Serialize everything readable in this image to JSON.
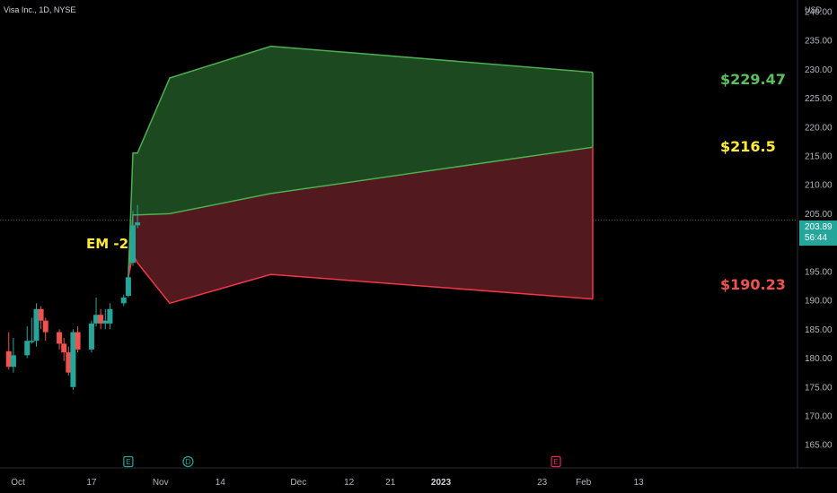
{
  "header": {
    "symbol": "Visa Inc., 1D, NYSE",
    "currency": "USD"
  },
  "price_tag": {
    "price": "203.89",
    "countdown": "56:44",
    "color": "#26a69a"
  },
  "annotations": {
    "em_label": "EM -2",
    "upper_label": "$229.47",
    "mid_label": "$216.5",
    "lower_label": "$190.23"
  },
  "colors": {
    "background": "#000000",
    "up_candle": "#26a69a",
    "down_candle": "#ef5350",
    "upper_fill": "#1f4d22",
    "lower_fill": "#561a20",
    "upper_line": "#4caf50",
    "lower_line": "#f23645",
    "label_upper": "#5cc05e",
    "label_mid": "#ffeb3b",
    "label_lower": "#ef5350"
  },
  "events": [
    {
      "icon": "earnings-icon",
      "letter": "E",
      "date": "2022-10-25",
      "color": "#26a69a"
    },
    {
      "icon": "dividend-icon",
      "letter": "D",
      "date": "2022-11-07",
      "color": "#26a69a"
    },
    {
      "icon": "earnings-icon",
      "letter": "E",
      "date": "2023-01-26",
      "color": "#e91e63"
    }
  ],
  "chart_data": {
    "type": "candlestick",
    "y_ticks": [
      "165.00",
      "170.00",
      "175.00",
      "180.00",
      "185.00",
      "190.00",
      "195.00",
      "200.00",
      "205.00",
      "210.00",
      "215.00",
      "220.00",
      "225.00",
      "230.00",
      "235.00",
      "240.00"
    ],
    "ylim": [
      161,
      242
    ],
    "x_ticks": [
      {
        "label": "Oct",
        "date": "2022-10-01"
      },
      {
        "label": "17",
        "date": "2022-10-17"
      },
      {
        "label": "Nov",
        "date": "2022-11-01"
      },
      {
        "label": "14",
        "date": "2022-11-14"
      },
      {
        "label": "Dec",
        "date": "2022-12-01"
      },
      {
        "label": "12",
        "date": "2022-12-12"
      },
      {
        "label": "21",
        "date": "2022-12-21"
      },
      {
        "label": "2023",
        "date": "2023-01-01",
        "bold": true
      },
      {
        "label": "23",
        "date": "2023-01-23"
      },
      {
        "label": "Feb",
        "date": "2023-02-01"
      },
      {
        "label": "13",
        "date": "2023-02-13"
      }
    ],
    "candles": [
      {
        "date": "2022-09-29",
        "open": 181.2,
        "high": 184.5,
        "low": 178.0,
        "close": 178.5
      },
      {
        "date": "2022-09-30",
        "open": 178.5,
        "high": 183.5,
        "low": 177.5,
        "close": 180.5
      },
      {
        "date": "2022-10-03",
        "open": 180.5,
        "high": 185.5,
        "low": 180.0,
        "close": 183.0
      },
      {
        "date": "2022-10-04",
        "open": 183.0,
        "high": 187.0,
        "low": 182.5,
        "close": 183.0
      },
      {
        "date": "2022-10-05",
        "open": 183.0,
        "high": 189.5,
        "low": 182.0,
        "close": 188.5
      },
      {
        "date": "2022-10-06",
        "open": 188.5,
        "high": 189.0,
        "low": 185.0,
        "close": 186.5
      },
      {
        "date": "2022-10-07",
        "open": 186.5,
        "high": 187.0,
        "low": 183.0,
        "close": 184.5
      },
      {
        "date": "2022-10-10",
        "open": 184.5,
        "high": 185.0,
        "low": 181.5,
        "close": 182.5
      },
      {
        "date": "2022-10-11",
        "open": 182.5,
        "high": 183.5,
        "low": 179.5,
        "close": 181.0
      },
      {
        "date": "2022-10-12",
        "open": 181.0,
        "high": 182.0,
        "low": 177.0,
        "close": 177.5
      },
      {
        "date": "2022-10-13",
        "open": 175.0,
        "high": 185.0,
        "low": 174.5,
        "close": 184.5
      },
      {
        "date": "2022-10-14",
        "open": 184.5,
        "high": 185.5,
        "low": 181.0,
        "close": 181.5
      },
      {
        "date": "2022-10-17",
        "open": 181.5,
        "high": 186.5,
        "low": 181.0,
        "close": 186.0
      },
      {
        "date": "2022-10-18",
        "open": 186.0,
        "high": 190.5,
        "low": 185.5,
        "close": 187.5
      },
      {
        "date": "2022-10-19",
        "open": 187.5,
        "high": 188.5,
        "low": 185.0,
        "close": 186.0
      },
      {
        "date": "2022-10-20",
        "open": 186.0,
        "high": 188.5,
        "low": 185.0,
        "close": 186.5
      },
      {
        "date": "2022-10-21",
        "open": 186.0,
        "high": 189.5,
        "low": 185.0,
        "close": 188.5
      },
      {
        "date": "2022-10-24",
        "open": 189.5,
        "high": 191.0,
        "low": 189.0,
        "close": 190.5
      },
      {
        "date": "2022-10-25",
        "open": 190.8,
        "high": 196.0,
        "low": 190.5,
        "close": 194.0
      },
      {
        "date": "2022-10-26",
        "open": 196.5,
        "high": 205.5,
        "low": 196.0,
        "close": 203.0
      },
      {
        "date": "2022-10-27",
        "open": 203.0,
        "high": 206.5,
        "low": 202.5,
        "close": 203.5
      }
    ],
    "expected_move": {
      "dates": [
        "2022-10-25",
        "2022-10-26",
        "2022-10-27",
        "2022-11-03",
        "2022-11-25",
        "2023-02-03"
      ],
      "upper": [
        194.0,
        215.5,
        215.5,
        228.5,
        234.0,
        229.47
      ],
      "mid": [
        194.0,
        204.8,
        204.8,
        205.0,
        208.5,
        216.5
      ],
      "lower": [
        194.0,
        198.0,
        196.5,
        189.5,
        194.5,
        190.23
      ]
    },
    "current_price": 203.89
  }
}
